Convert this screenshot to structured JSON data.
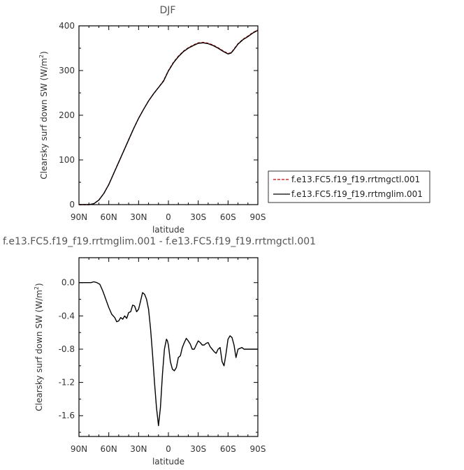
{
  "chart_data": [
    {
      "type": "line",
      "title": "DJF",
      "xlabel": "latitude",
      "ylabel": "Clearsky surf down SW (W/m",
      "ylabel_sup": "2",
      "ylabel_tail": ")",
      "xlim": [
        90,
        -90
      ],
      "ylim": [
        0,
        400
      ],
      "xticks": [
        90,
        60,
        30,
        0,
        -30,
        -60,
        -90
      ],
      "xtick_labels": [
        "90N",
        "60N",
        "30N",
        "0",
        "30S",
        "60S",
        "90S"
      ],
      "yticks": [
        0,
        100,
        200,
        300,
        400
      ],
      "ytick_labels": [
        "0",
        "100",
        "200",
        "300",
        "400"
      ],
      "grid": false,
      "legend": "right",
      "series": [
        {
          "name": "f.e13.FC5.f19_f19.rrtmgctl.001",
          "color": "#cc0000",
          "dash": "dashed",
          "x": [
            90,
            85,
            80,
            75,
            70,
            65,
            60,
            55,
            50,
            45,
            40,
            35,
            30,
            25,
            20,
            15,
            10,
            5,
            0,
            -5,
            -10,
            -15,
            -20,
            -25,
            -30,
            -35,
            -40,
            -45,
            -50,
            -55,
            -60,
            -63,
            -65,
            -70,
            -75,
            -80,
            -85,
            -90
          ],
          "y": [
            0,
            0,
            0,
            2,
            10,
            25,
            45,
            70,
            95,
            120,
            145,
            170,
            193,
            213,
            232,
            248,
            262,
            277,
            300,
            318,
            332,
            343,
            351,
            357,
            362,
            363,
            361,
            357,
            351,
            344,
            338,
            340,
            345,
            360,
            370,
            377,
            385,
            391
          ]
        },
        {
          "name": "f.e13.FC5.f19_f19.rrtmglim.001",
          "color": "#000000",
          "dash": "solid",
          "x": [
            90,
            85,
            80,
            75,
            70,
            65,
            60,
            55,
            50,
            45,
            40,
            35,
            30,
            25,
            20,
            15,
            10,
            5,
            0,
            -5,
            -10,
            -15,
            -20,
            -25,
            -30,
            -35,
            -40,
            -45,
            -50,
            -55,
            -60,
            -63,
            -65,
            -70,
            -75,
            -80,
            -85,
            -90
          ],
          "y": [
            0,
            0,
            0,
            2,
            10,
            25,
            45,
            70,
            95,
            120,
            145,
            170,
            193,
            213,
            232,
            248,
            262,
            276,
            299,
            317,
            331,
            342,
            350,
            356,
            361,
            362,
            360,
            356,
            350,
            343,
            337,
            339,
            344,
            359,
            369,
            376,
            384,
            390
          ]
        }
      ]
    },
    {
      "type": "line",
      "title": "f.e13.FC5.f19_f19.rrtmglim.001 - f.e13.FC5.f19_f19.rrtmgctl.001",
      "xlabel": "latitude",
      "ylabel": "Clearsky surf down SW (W/m",
      "ylabel_sup": "2",
      "ylabel_tail": ")",
      "xlim": [
        90,
        -90
      ],
      "ylim": [
        -1.85,
        0.3
      ],
      "xticks": [
        90,
        60,
        30,
        0,
        -30,
        -60,
        -90
      ],
      "xtick_labels": [
        "90N",
        "60N",
        "30N",
        "0",
        "30S",
        "60S",
        "90S"
      ],
      "yticks": [
        0.0,
        -0.4,
        -0.8,
        -1.2,
        -1.6
      ],
      "ytick_labels": [
        "0.0",
        "-0.4",
        "-0.8",
        "-1.2",
        "-1.6"
      ],
      "grid": false,
      "series": [
        {
          "color": "#000000",
          "dash": "solid",
          "x": [
            90,
            86,
            82,
            78,
            75,
            72,
            69,
            66,
            63,
            60,
            57,
            54,
            52,
            50,
            48,
            46,
            44,
            42,
            40,
            38,
            36,
            34,
            32,
            30,
            28,
            26,
            24,
            22,
            20,
            18,
            16,
            14,
            12,
            10,
            8,
            6,
            4,
            2,
            1,
            0,
            -2,
            -4,
            -6,
            -8,
            -10,
            -12,
            -14,
            -16,
            -18,
            -20,
            -22,
            -24,
            -26,
            -28,
            -30,
            -32,
            -34,
            -36,
            -38,
            -40,
            -42,
            -44,
            -46,
            -48,
            -50,
            -52,
            -54,
            -56,
            -58,
            -60,
            -62,
            -64,
            -66,
            -68,
            -70,
            -72,
            -74,
            -76,
            -78,
            -80,
            -82,
            -84,
            -86,
            -88,
            -90
          ],
          "y": [
            0,
            0,
            0,
            0,
            0.01,
            0,
            -0.02,
            -0.1,
            -0.2,
            -0.3,
            -0.38,
            -0.42,
            -0.47,
            -0.46,
            -0.42,
            -0.44,
            -0.4,
            -0.43,
            -0.36,
            -0.35,
            -0.27,
            -0.28,
            -0.35,
            -0.32,
            -0.22,
            -0.12,
            -0.14,
            -0.2,
            -0.32,
            -0.55,
            -0.85,
            -1.2,
            -1.5,
            -1.72,
            -1.5,
            -1.1,
            -0.8,
            -0.68,
            -0.7,
            -0.75,
            -0.95,
            -1.04,
            -1.06,
            -1.02,
            -0.9,
            -0.88,
            -0.78,
            -0.72,
            -0.67,
            -0.7,
            -0.74,
            -0.8,
            -0.8,
            -0.75,
            -0.7,
            -0.72,
            -0.75,
            -0.75,
            -0.73,
            -0.72,
            -0.77,
            -0.8,
            -0.83,
            -0.85,
            -0.8,
            -0.78,
            -0.95,
            -1.0,
            -0.85,
            -0.68,
            -0.64,
            -0.66,
            -0.75,
            -0.9,
            -0.8,
            -0.79,
            -0.78,
            -0.8,
            -0.8,
            -0.8,
            -0.8,
            -0.8,
            -0.8,
            -0.8,
            -0.8
          ]
        }
      ]
    }
  ]
}
